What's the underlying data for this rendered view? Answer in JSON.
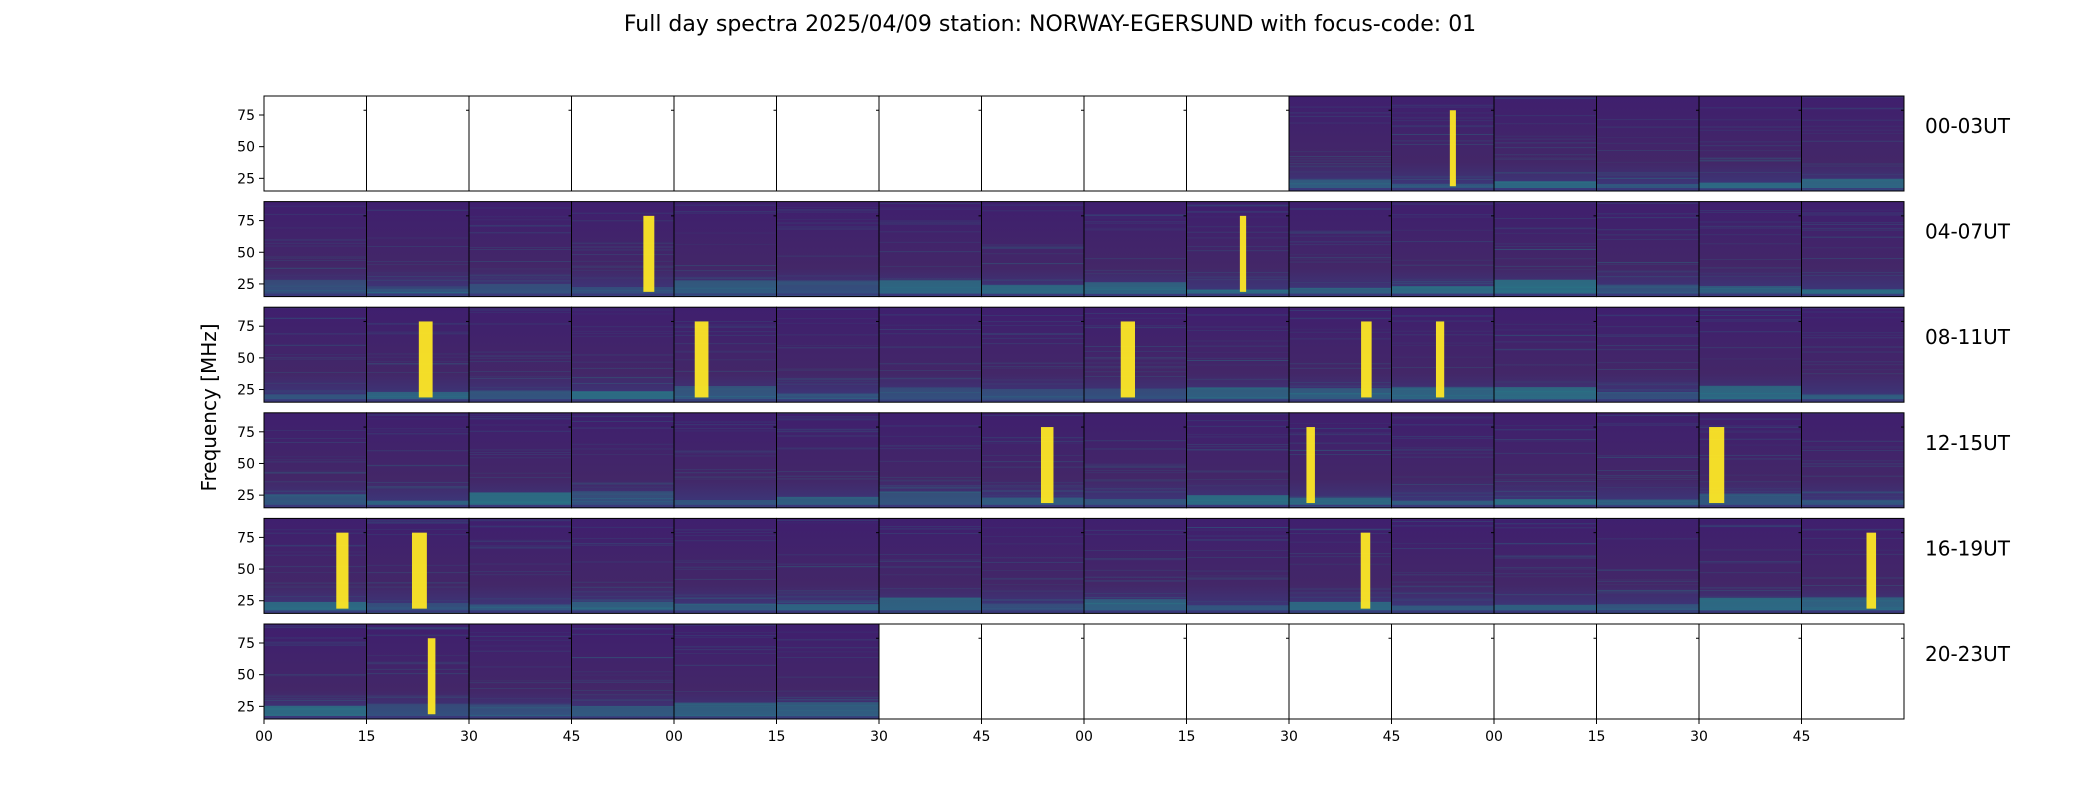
{
  "title": "Full day spectra 2025/04/09 station: NORWAY-EGERSUND with focus-code: 01",
  "chart_data": {
    "type": "heatmap",
    "title": "Full day spectra 2025/04/09 station: NORWAY-EGERSUND with focus-code: 01",
    "ylabel": "Frequency [MHz]",
    "xlabel": "",
    "y_ticks": [
      25,
      50,
      75
    ],
    "ylim": [
      15,
      90
    ],
    "x_tick_labels": [
      "00",
      "15",
      "30",
      "45",
      "00",
      "15",
      "30",
      "45",
      "00",
      "15",
      "30",
      "45",
      "00",
      "15",
      "30",
      "45"
    ],
    "colormap": {
      "low": "#440154",
      "mid": "#21918c",
      "high": "#fde725"
    },
    "panels_per_row": 16,
    "rows": [
      {
        "label": "00-03UT",
        "data_start_panel": 10,
        "data_end_panel": 16
      },
      {
        "label": "04-07UT",
        "data_start_panel": 0,
        "data_end_panel": 16
      },
      {
        "label": "08-11UT",
        "data_start_panel": 0,
        "data_end_panel": 16
      },
      {
        "label": "12-15UT",
        "data_start_panel": 0,
        "data_end_panel": 16
      },
      {
        "label": "16-19UT",
        "data_start_panel": 0,
        "data_end_panel": 16
      },
      {
        "label": "20-23UT",
        "data_start_panel": 0,
        "data_end_panel": 6
      }
    ]
  }
}
